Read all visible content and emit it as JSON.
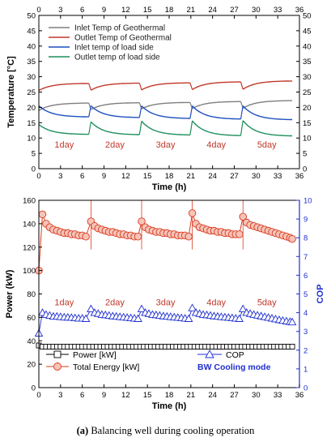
{
  "caption": {
    "label": "(a)",
    "text": "Balancing well during cooling operation"
  },
  "colors": {
    "inlet_geo": "#7f7f7f",
    "outlet_geo": "#c0392b",
    "inlet_load": "#1f4fbf",
    "outlet_load": "#1e8f5c",
    "power": "#000000",
    "energy": "#d83a1f",
    "cop": "#1f2fcf",
    "day_label": "#c0392b",
    "bw_text": "#1f2fcf"
  },
  "chart_data": [
    {
      "type": "line",
      "xlabel": "Time (h)",
      "ylabel": "Temperature [°C]",
      "xlim": [
        0,
        36
      ],
      "ylim": [
        0,
        50
      ],
      "xticks": [
        0,
        3,
        6,
        9,
        12,
        15,
        18,
        21,
        24,
        27,
        30,
        33,
        36
      ],
      "yticks": [
        0,
        5,
        10,
        15,
        20,
        25,
        30,
        35,
        40,
        45,
        50
      ],
      "grid": false,
      "legend": "top-left",
      "annotations": [
        {
          "text": "1day",
          "x": 3.5,
          "y": 8
        },
        {
          "text": "2day",
          "x": 10.5,
          "y": 8
        },
        {
          "text": "3day",
          "x": 17.5,
          "y": 8
        },
        {
          "text": "4day",
          "x": 24.5,
          "y": 8
        },
        {
          "text": "5day",
          "x": 31.5,
          "y": 8
        }
      ],
      "cycles": [
        [
          0,
          6.9
        ],
        [
          7.2,
          13.9
        ],
        [
          14.2,
          20.9
        ],
        [
          21.2,
          27.9
        ],
        [
          28.2,
          35
        ]
      ],
      "series": [
        {
          "name": "Inlet Temp of Geothermal",
          "color_key": "inlet_geo",
          "profile": {
            "type": "rise",
            "starts": [
              19.0,
              19.3,
              19.5,
              19.6,
              19.7
            ],
            "ends": [
              21.4,
              21.5,
              21.6,
              21.9,
              22.2
            ]
          }
        },
        {
          "name": "Outlet Temp of Geothermal",
          "color_key": "outlet_geo",
          "profile": {
            "type": "rise",
            "starts": [
              25.5,
              25.6,
              25.7,
              25.8,
              25.9
            ],
            "ends": [
              27.8,
              27.9,
              28.0,
              28.3,
              28.6
            ]
          }
        },
        {
          "name": "Inlet temp of load side",
          "color_key": "inlet_load",
          "profile": {
            "type": "fall",
            "starts": [
              20.5,
              20.5,
              20.5,
              20.5,
              20.5
            ],
            "ends": [
              16.9,
              16.7,
              16.4,
              16.2,
              16.0
            ]
          }
        },
        {
          "name": "Outlet temp of load side",
          "color_key": "outlet_load",
          "profile": {
            "type": "fall",
            "starts": [
              14.4,
              15.3,
              15.5,
              15.6,
              15.7
            ],
            "ends": [
              11.2,
              11.1,
              11.0,
              10.8,
              10.7
            ]
          }
        }
      ]
    },
    {
      "type": "scatter",
      "xlabel": "Time (h)",
      "ylabel": "Power (kW)",
      "y2label": "COP",
      "xlim": [
        0,
        36
      ],
      "ylim": [
        0,
        160
      ],
      "y2lim": [
        0,
        10
      ],
      "xticks": [
        0,
        3,
        6,
        9,
        12,
        15,
        18,
        21,
        24,
        27,
        30,
        33,
        36
      ],
      "yticks": [
        0,
        20,
        40,
        60,
        80,
        100,
        120,
        140,
        160
      ],
      "y2ticks": [
        0,
        1,
        2,
        3,
        4,
        5,
        6,
        7,
        8,
        9,
        10
      ],
      "grid": false,
      "legend": "bottom",
      "annotations": [
        {
          "text": "1day",
          "x": 3.5,
          "y": 73
        },
        {
          "text": "2day",
          "x": 10.5,
          "y": 73
        },
        {
          "text": "3day",
          "x": 17.5,
          "y": 73
        },
        {
          "text": "4day",
          "x": 24.5,
          "y": 73
        },
        {
          "text": "5day",
          "x": 31.5,
          "y": 73
        }
      ],
      "series": [
        {
          "name": "Power [kW]",
          "color_key": "power",
          "marker": "square",
          "axis": "left",
          "x": [
            0,
            0.5,
            1,
            1.5,
            2,
            2.5,
            3,
            3.5,
            4,
            4.5,
            5,
            5.5,
            6,
            6.5,
            7,
            7.5,
            8,
            8.5,
            9,
            9.5,
            10,
            10.5,
            11,
            11.5,
            12,
            12.5,
            13,
            13.5,
            14,
            14.5,
            15,
            15.5,
            16,
            16.5,
            17,
            17.5,
            18,
            18.5,
            19,
            19.5,
            20,
            20.5,
            21,
            21.5,
            22,
            22.5,
            23,
            23.5,
            24,
            24.5,
            25,
            25.5,
            26,
            26.5,
            27,
            27.5,
            28,
            28.5,
            29,
            29.5,
            30,
            30.5,
            31,
            31.5,
            32,
            32.5,
            33,
            33.5,
            34,
            34.5,
            35
          ],
          "y": [
            36,
            35,
            35,
            35,
            35,
            35,
            35,
            35,
            35,
            35,
            35,
            35,
            35,
            35,
            35,
            35,
            35,
            35,
            35,
            35,
            35,
            35,
            35,
            35,
            35,
            35,
            35,
            35,
            35,
            35,
            35,
            35,
            35,
            35,
            35,
            35,
            35,
            35,
            35,
            35,
            35,
            35,
            35,
            35,
            35,
            35,
            35,
            35,
            35,
            35,
            35,
            35,
            35,
            35,
            35,
            35,
            35,
            35,
            35,
            35,
            35,
            35,
            35,
            35,
            35,
            35,
            35,
            35,
            35,
            35,
            35
          ]
        },
        {
          "name": "Total Energy [kW]",
          "color_key": "energy",
          "marker": "circle",
          "axis": "left",
          "x": [
            0,
            0.5,
            1,
            1.5,
            2,
            2.5,
            3,
            3.5,
            4,
            4.5,
            5,
            5.5,
            6,
            6.5,
            7.2,
            7.7,
            8.2,
            8.7,
            9.2,
            9.7,
            10.2,
            10.7,
            11.2,
            11.7,
            12.2,
            12.7,
            13.2,
            13.7,
            14.2,
            14.7,
            15.2,
            15.7,
            16.2,
            16.7,
            17.2,
            17.7,
            18.2,
            18.7,
            19.2,
            19.7,
            20.2,
            20.7,
            21.2,
            21.7,
            22.2,
            22.7,
            23.2,
            23.7,
            24.2,
            24.7,
            25.2,
            25.7,
            26.2,
            26.7,
            27.2,
            27.7,
            28.2,
            28.7,
            29.2,
            29.7,
            30.2,
            30.7,
            31.2,
            31.7,
            32.2,
            32.7,
            33.2,
            33.7,
            34.2,
            34.7,
            35
          ],
          "y": [
            100,
            148,
            140,
            137,
            135,
            134,
            133,
            132,
            132,
            131,
            131,
            130,
            130,
            129,
            142,
            138,
            136,
            135,
            134,
            133,
            133,
            132,
            131,
            131,
            130,
            130,
            129,
            129,
            142,
            137,
            135,
            134,
            133,
            133,
            132,
            132,
            131,
            131,
            130,
            130,
            130,
            129,
            149,
            140,
            137,
            136,
            135,
            134,
            134,
            133,
            133,
            132,
            132,
            131,
            131,
            131,
            146,
            141,
            139,
            138,
            137,
            136,
            135,
            134,
            133,
            132,
            131,
            130,
            129,
            128,
            127
          ]
        },
        {
          "name": "COP",
          "color_key": "cop",
          "marker": "triangle",
          "axis": "right",
          "x": [
            0,
            0.5,
            1,
            1.5,
            2,
            2.5,
            3,
            3.5,
            4,
            4.5,
            5,
            5.5,
            6,
            6.5,
            7.2,
            7.7,
            8.2,
            8.7,
            9.2,
            9.7,
            10.2,
            10.7,
            11.2,
            11.7,
            12.2,
            12.7,
            13.2,
            13.7,
            14.2,
            14.7,
            15.2,
            15.7,
            16.2,
            16.7,
            17.2,
            17.7,
            18.2,
            18.7,
            19.2,
            19.7,
            20.2,
            20.7,
            21.2,
            21.7,
            22.2,
            22.7,
            23.2,
            23.7,
            24.2,
            24.7,
            25.2,
            25.7,
            26.2,
            26.7,
            27.2,
            27.7,
            28.2,
            28.7,
            29.2,
            29.7,
            30.2,
            30.7,
            31.2,
            31.7,
            32.2,
            32.7,
            33.2,
            33.7,
            34.2,
            34.7,
            35
          ],
          "y": [
            2.9,
            4.0,
            3.9,
            3.85,
            3.8,
            3.8,
            3.78,
            3.76,
            3.75,
            3.74,
            3.72,
            3.7,
            3.7,
            3.68,
            4.2,
            4.0,
            3.95,
            3.9,
            3.88,
            3.85,
            3.82,
            3.8,
            3.78,
            3.76,
            3.74,
            3.72,
            3.7,
            3.68,
            4.2,
            4.0,
            3.95,
            3.9,
            3.88,
            3.85,
            3.82,
            3.8,
            3.78,
            3.76,
            3.74,
            3.72,
            3.7,
            3.68,
            4.25,
            4.0,
            3.95,
            3.9,
            3.88,
            3.85,
            3.82,
            3.8,
            3.78,
            3.76,
            3.74,
            3.72,
            3.7,
            3.68,
            4.2,
            4.0,
            3.95,
            3.9,
            3.86,
            3.82,
            3.78,
            3.74,
            3.7,
            3.66,
            3.62,
            3.58,
            3.55,
            3.52,
            3.5
          ]
        }
      ],
      "footer_text": "BW Cooling mode"
    }
  ]
}
